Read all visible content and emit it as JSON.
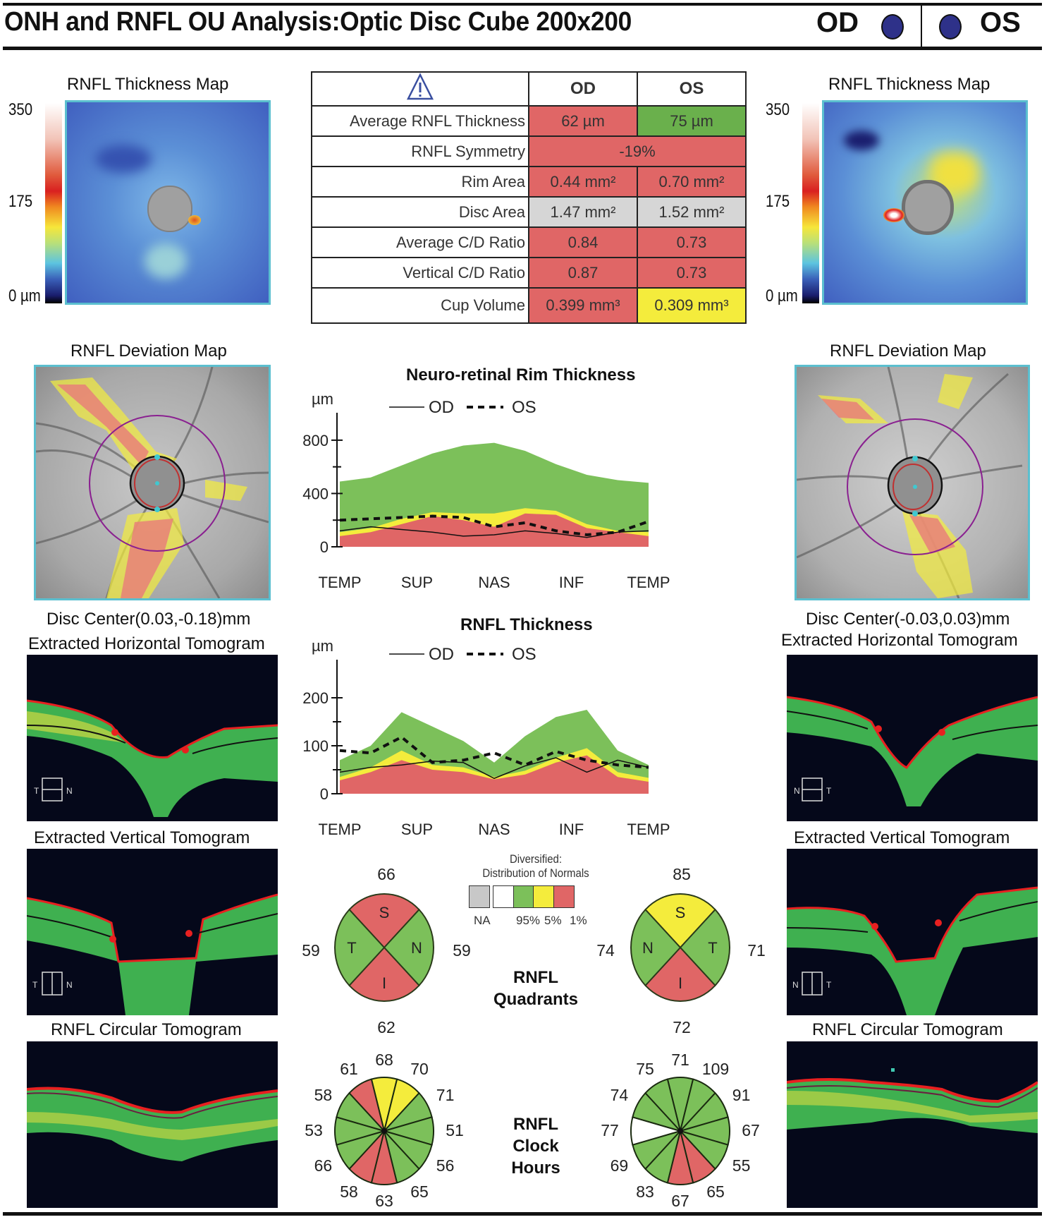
{
  "header": {
    "title": "ONH and RNFL OU Analysis:Optic Disc Cube 200x200",
    "od_label": "OD",
    "os_label": "OS",
    "eye_dot_color": "#2e3189"
  },
  "thickness_map": {
    "title": "RNFL Thickness Map",
    "scale_max": "350",
    "scale_mid": "175",
    "scale_min": "0 µm"
  },
  "deviation_map": {
    "title": "RNFL Deviation Map",
    "od_disc_center": "Disc Center(0.03,-0.18)mm",
    "os_disc_center": "Disc Center(-0.03,0.03)mm"
  },
  "tomograms": {
    "horizontal_title": "Extracted Horizontal Tomogram",
    "vertical_title": "Extracted Vertical Tomogram",
    "circular_title": "RNFL Circular Tomogram",
    "od_horizontal_orient": {
      "left": "T",
      "right": "N"
    },
    "os_horizontal_orient": {
      "left": "N",
      "right": "T"
    },
    "od_vertical_orient": {
      "left": "T",
      "right": "N"
    },
    "os_vertical_orient": {
      "left": "N",
      "right": "T"
    }
  },
  "metrics_table": {
    "warning_icon": "warning-triangle-icon",
    "col_od": "OD",
    "col_os": "OS",
    "rows": [
      {
        "label": "Average RNFL Thickness",
        "od": "62 µm",
        "os": "75 µm",
        "od_color": "#e06666",
        "os_color": "#6ab04c"
      },
      {
        "label": "RNFL Symmetry",
        "merged": "-19%",
        "color": "#e06666"
      },
      {
        "label": "Rim Area",
        "od": "0.44 mm²",
        "os": "0.70 mm²",
        "od_color": "#e06666",
        "os_color": "#e06666"
      },
      {
        "label": "Disc Area",
        "od": "1.47 mm²",
        "os": "1.52 mm²",
        "od_color": "#d6d6d6",
        "os_color": "#d6d6d6"
      },
      {
        "label": "Average C/D Ratio",
        "od": "0.84",
        "os": "0.73",
        "od_color": "#e06666",
        "os_color": "#e06666"
      },
      {
        "label": "Vertical C/D Ratio",
        "od": "0.87",
        "os": "0.73",
        "od_color": "#e06666",
        "os_color": "#e06666"
      },
      {
        "label": "Cup Volume",
        "od": "0.399 mm³",
        "os": "0.309 mm³",
        "od_color": "#e06666",
        "os_color": "#f4ec3c"
      }
    ]
  },
  "normative_colors": {
    "red": "#e06666",
    "yellow": "#f4ec3c",
    "green": "#7cc05a",
    "white": "#ffffff",
    "gray": "#c8c8c8"
  },
  "legend": {
    "title_line1": "Diversified:",
    "title_line2": "Distribution of Normals",
    "labels": [
      "NA",
      "95%",
      "5%",
      "1%"
    ]
  },
  "quadrants": {
    "title_line1": "RNFL",
    "title_line2": "Quadrants",
    "od": {
      "S": 66,
      "N": 59,
      "I": 62,
      "T": 59,
      "colors": {
        "S": "red",
        "N": "green",
        "I": "red",
        "T": "green"
      },
      "left_letter": "T",
      "right_letter": "N"
    },
    "os": {
      "S": 85,
      "T": 71,
      "I": 72,
      "N": 74,
      "colors": {
        "S": "yellow",
        "T": "green",
        "I": "red",
        "N": "green"
      },
      "left_letter": "N",
      "right_letter": "T"
    }
  },
  "clock_hours": {
    "title_line1": "RNFL",
    "title_line2": "Clock",
    "title_line3": "Hours",
    "od": {
      "values_clockwise_from_12": [
        68,
        70,
        71,
        51,
        56,
        65,
        63,
        58,
        66,
        53,
        58,
        61
      ],
      "colors_clockwise_from_12": [
        "yellow",
        "yellow",
        "green",
        "green",
        "green",
        "green",
        "red",
        "red",
        "green",
        "green",
        "green",
        "red"
      ]
    },
    "os": {
      "values_clockwise_from_12": [
        71,
        109,
        91,
        67,
        55,
        65,
        67,
        83,
        69,
        77,
        74,
        75
      ],
      "colors_clockwise_from_12": [
        "green",
        "green",
        "green",
        "green",
        "green",
        "red",
        "red",
        "green",
        "green",
        "white",
        "green",
        "green"
      ]
    }
  },
  "chart_data": [
    {
      "type": "area",
      "title": "Neuro-retinal Rim Thickness",
      "ylabel": "µm",
      "ylim": [
        0,
        900
      ],
      "yticks": [
        0,
        400,
        800
      ],
      "minor_yticks": [
        200,
        600
      ],
      "categories": [
        "TEMP",
        "SUP",
        "NAS",
        "INF",
        "TEMP"
      ],
      "x": [
        0,
        0.1,
        0.2,
        0.3,
        0.4,
        0.5,
        0.6,
        0.7,
        0.8,
        0.9,
        1.0
      ],
      "legend": [
        {
          "name": "OD",
          "style": "solid"
        },
        {
          "name": "OS",
          "style": "dashed"
        }
      ],
      "bands": {
        "red_top": [
          80,
          110,
          170,
          230,
          200,
          150,
          250,
          240,
          140,
          110,
          80
        ],
        "yellow_top": [
          110,
          140,
          210,
          260,
          250,
          250,
          290,
          270,
          170,
          120,
          110
        ],
        "green_top": [
          490,
          520,
          610,
          700,
          760,
          780,
          720,
          620,
          540,
          500,
          480
        ]
      },
      "series": [
        {
          "name": "OD",
          "values": [
            120,
            150,
            130,
            110,
            80,
            90,
            120,
            100,
            70,
            110,
            120
          ]
        },
        {
          "name": "OS",
          "values": [
            200,
            210,
            220,
            230,
            220,
            150,
            180,
            120,
            90,
            110,
            190
          ]
        }
      ]
    },
    {
      "type": "area",
      "title": "RNFL Thickness",
      "ylabel": "µm",
      "ylim": [
        0,
        250
      ],
      "yticks": [
        0,
        100,
        200
      ],
      "minor_yticks": [
        50,
        150
      ],
      "categories": [
        "TEMP",
        "SUP",
        "NAS",
        "INF",
        "TEMP"
      ],
      "x": [
        0,
        0.1,
        0.2,
        0.3,
        0.4,
        0.5,
        0.6,
        0.7,
        0.8,
        0.9,
        1.0
      ],
      "legend": [
        {
          "name": "OD",
          "style": "solid"
        },
        {
          "name": "OS",
          "style": "dashed"
        }
      ],
      "bands": {
        "red_top": [
          28,
          45,
          70,
          50,
          45,
          30,
          40,
          65,
          80,
          35,
          25
        ],
        "yellow_top": [
          35,
          55,
          90,
          60,
          55,
          35,
          48,
          75,
          95,
          45,
          33
        ],
        "green_top": [
          70,
          100,
          170,
          140,
          110,
          65,
          120,
          160,
          175,
          90,
          60
        ]
      },
      "series": [
        {
          "name": "OD",
          "values": [
            45,
            55,
            60,
            68,
            65,
            32,
            58,
            75,
            45,
            70,
            55
          ]
        },
        {
          "name": "OS",
          "values": [
            90,
            85,
            118,
            65,
            70,
            85,
            60,
            88,
            70,
            60,
            55
          ]
        }
      ]
    }
  ]
}
